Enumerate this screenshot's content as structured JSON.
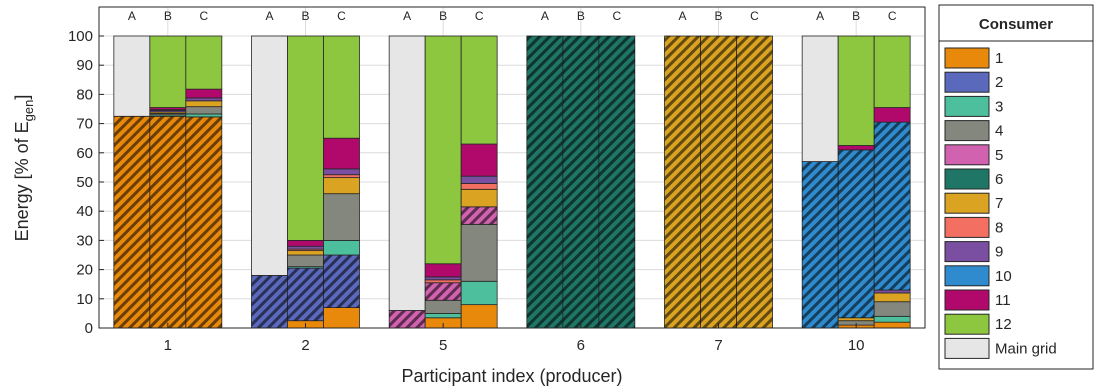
{
  "chart_data": {
    "type": "bar",
    "stacked": true,
    "title": "",
    "xlabel": "Participant index (producer)",
    "ylabel_prefix": "Energy [% of E",
    "ylabel_sub": "gen",
    "ylabel_suffix": "]",
    "ylim": [
      0,
      100
    ],
    "yticks": [
      0,
      10,
      20,
      30,
      40,
      50,
      60,
      70,
      80,
      90,
      100
    ],
    "grid": true,
    "scenarios": [
      "A",
      "B",
      "C"
    ],
    "legend": {
      "title": "Consumer",
      "position": "right",
      "items": [
        {
          "label": "1",
          "color": "#e8890c"
        },
        {
          "label": "2",
          "color": "#5b69bd"
        },
        {
          "label": "3",
          "color": "#4dbf9c"
        },
        {
          "label": "4",
          "color": "#84877d"
        },
        {
          "label": "5",
          "color": "#d062b0"
        },
        {
          "label": "6",
          "color": "#1f7566"
        },
        {
          "label": "7",
          "color": "#dba322"
        },
        {
          "label": "8",
          "color": "#f26f61"
        },
        {
          "label": "9",
          "color": "#7a4ea0"
        },
        {
          "label": "10",
          "color": "#2f8bcd"
        },
        {
          "label": "11",
          "color": "#b0086b"
        },
        {
          "label": "12",
          "color": "#8dc63f"
        },
        {
          "label": "Main grid",
          "color": "#e6e6e6"
        }
      ]
    },
    "groups": [
      {
        "label": "1",
        "bars": [
          {
            "scenario": "A",
            "self_consumer": "1",
            "segments": [
              {
                "consumer": "1",
                "value": 72.5
              },
              {
                "consumer": "Main grid",
                "value": 27.5
              }
            ]
          },
          {
            "scenario": "B",
            "self_consumer": "1",
            "segments": [
              {
                "consumer": "1",
                "value": 72.5
              },
              {
                "consumer": "3",
                "value": 0.5
              },
              {
                "consumer": "4",
                "value": 0.5
              },
              {
                "consumer": "7",
                "value": 0.5
              },
              {
                "consumer": "9",
                "value": 0.5
              },
              {
                "consumer": "10",
                "value": 0.3
              },
              {
                "consumer": "11",
                "value": 0.7
              },
              {
                "consumer": "12",
                "value": 24.5
              }
            ]
          },
          {
            "scenario": "C",
            "self_consumer": "1",
            "segments": [
              {
                "consumer": "1",
                "value": 72.3
              },
              {
                "consumer": "3",
                "value": 1
              },
              {
                "consumer": "4",
                "value": 2.5
              },
              {
                "consumer": "7",
                "value": 2
              },
              {
                "consumer": "9",
                "value": 1
              },
              {
                "consumer": "11",
                "value": 3
              },
              {
                "consumer": "12",
                "value": 18.2
              }
            ]
          }
        ]
      },
      {
        "label": "2",
        "bars": [
          {
            "scenario": "A",
            "self_consumer": "2",
            "segments": [
              {
                "consumer": "2",
                "value": 18
              },
              {
                "consumer": "Main grid",
                "value": 82
              }
            ]
          },
          {
            "scenario": "B",
            "self_consumer": "2",
            "segments": [
              {
                "consumer": "1",
                "value": 2.5
              },
              {
                "consumer": "2",
                "value": 18
              },
              {
                "consumer": "3",
                "value": 0.5
              },
              {
                "consumer": "4",
                "value": 4
              },
              {
                "consumer": "7",
                "value": 1.5
              },
              {
                "consumer": "8",
                "value": 0.5
              },
              {
                "consumer": "9",
                "value": 1
              },
              {
                "consumer": "11",
                "value": 2
              },
              {
                "consumer": "12",
                "value": 70
              }
            ]
          },
          {
            "scenario": "C",
            "self_consumer": "2",
            "segments": [
              {
                "consumer": "1",
                "value": 7
              },
              {
                "consumer": "2",
                "value": 18
              },
              {
                "consumer": "3",
                "value": 5
              },
              {
                "consumer": "4",
                "value": 16
              },
              {
                "consumer": "7",
                "value": 5.5
              },
              {
                "consumer": "8",
                "value": 1
              },
              {
                "consumer": "9",
                "value": 2
              },
              {
                "consumer": "11",
                "value": 10.5
              },
              {
                "consumer": "12",
                "value": 35
              }
            ]
          }
        ]
      },
      {
        "label": "5",
        "bars": [
          {
            "scenario": "A",
            "self_consumer": "5",
            "segments": [
              {
                "consumer": "5",
                "value": 6
              },
              {
                "consumer": "Main grid",
                "value": 94
              }
            ]
          },
          {
            "scenario": "B",
            "self_consumer": "5",
            "segments": [
              {
                "consumer": "1",
                "value": 3.5
              },
              {
                "consumer": "3",
                "value": 1.5
              },
              {
                "consumer": "4",
                "value": 4.5
              },
              {
                "consumer": "5",
                "value": 6
              },
              {
                "consumer": "8",
                "value": 1
              },
              {
                "consumer": "9",
                "value": 1
              },
              {
                "consumer": "11",
                "value": 4.5
              },
              {
                "consumer": "12",
                "value": 78
              }
            ]
          },
          {
            "scenario": "C",
            "self_consumer": "5",
            "segments": [
              {
                "consumer": "1",
                "value": 8
              },
              {
                "consumer": "3",
                "value": 8
              },
              {
                "consumer": "4",
                "value": 19.5
              },
              {
                "consumer": "5",
                "value": 6
              },
              {
                "consumer": "7",
                "value": 6
              },
              {
                "consumer": "8",
                "value": 2
              },
              {
                "consumer": "9",
                "value": 2.5
              },
              {
                "consumer": "11",
                "value": 11
              },
              {
                "consumer": "12",
                "value": 37
              }
            ]
          }
        ]
      },
      {
        "label": "6",
        "bars": [
          {
            "scenario": "A",
            "self_consumer": "6",
            "segments": [
              {
                "consumer": "6",
                "value": 100
              }
            ]
          },
          {
            "scenario": "B",
            "self_consumer": "6",
            "segments": [
              {
                "consumer": "6",
                "value": 100
              }
            ]
          },
          {
            "scenario": "C",
            "self_consumer": "6",
            "segments": [
              {
                "consumer": "6",
                "value": 100
              }
            ]
          }
        ]
      },
      {
        "label": "7",
        "bars": [
          {
            "scenario": "A",
            "self_consumer": "7",
            "segments": [
              {
                "consumer": "7",
                "value": 100
              }
            ]
          },
          {
            "scenario": "B",
            "self_consumer": "7",
            "segments": [
              {
                "consumer": "7",
                "value": 100
              }
            ]
          },
          {
            "scenario": "C",
            "self_consumer": "7",
            "segments": [
              {
                "consumer": "7",
                "value": 100
              }
            ]
          }
        ]
      },
      {
        "label": "10",
        "bars": [
          {
            "scenario": "A",
            "self_consumer": "10",
            "segments": [
              {
                "consumer": "10",
                "value": 57
              },
              {
                "consumer": "Main grid",
                "value": 43
              }
            ]
          },
          {
            "scenario": "B",
            "self_consumer": "10",
            "segments": [
              {
                "consumer": "1",
                "value": 1
              },
              {
                "consumer": "4",
                "value": 1.5
              },
              {
                "consumer": "7",
                "value": 1
              },
              {
                "consumer": "10",
                "value": 57.5
              },
              {
                "consumer": "11",
                "value": 1.5
              },
              {
                "consumer": "12",
                "value": 37.5
              }
            ]
          },
          {
            "scenario": "C",
            "self_consumer": "10",
            "segments": [
              {
                "consumer": "1",
                "value": 2
              },
              {
                "consumer": "3",
                "value": 2
              },
              {
                "consumer": "4",
                "value": 5
              },
              {
                "consumer": "7",
                "value": 3
              },
              {
                "consumer": "9",
                "value": 1
              },
              {
                "consumer": "10",
                "value": 57.5
              },
              {
                "consumer": "11",
                "value": 5
              },
              {
                "consumer": "12",
                "value": 24.5
              }
            ]
          }
        ]
      }
    ]
  }
}
